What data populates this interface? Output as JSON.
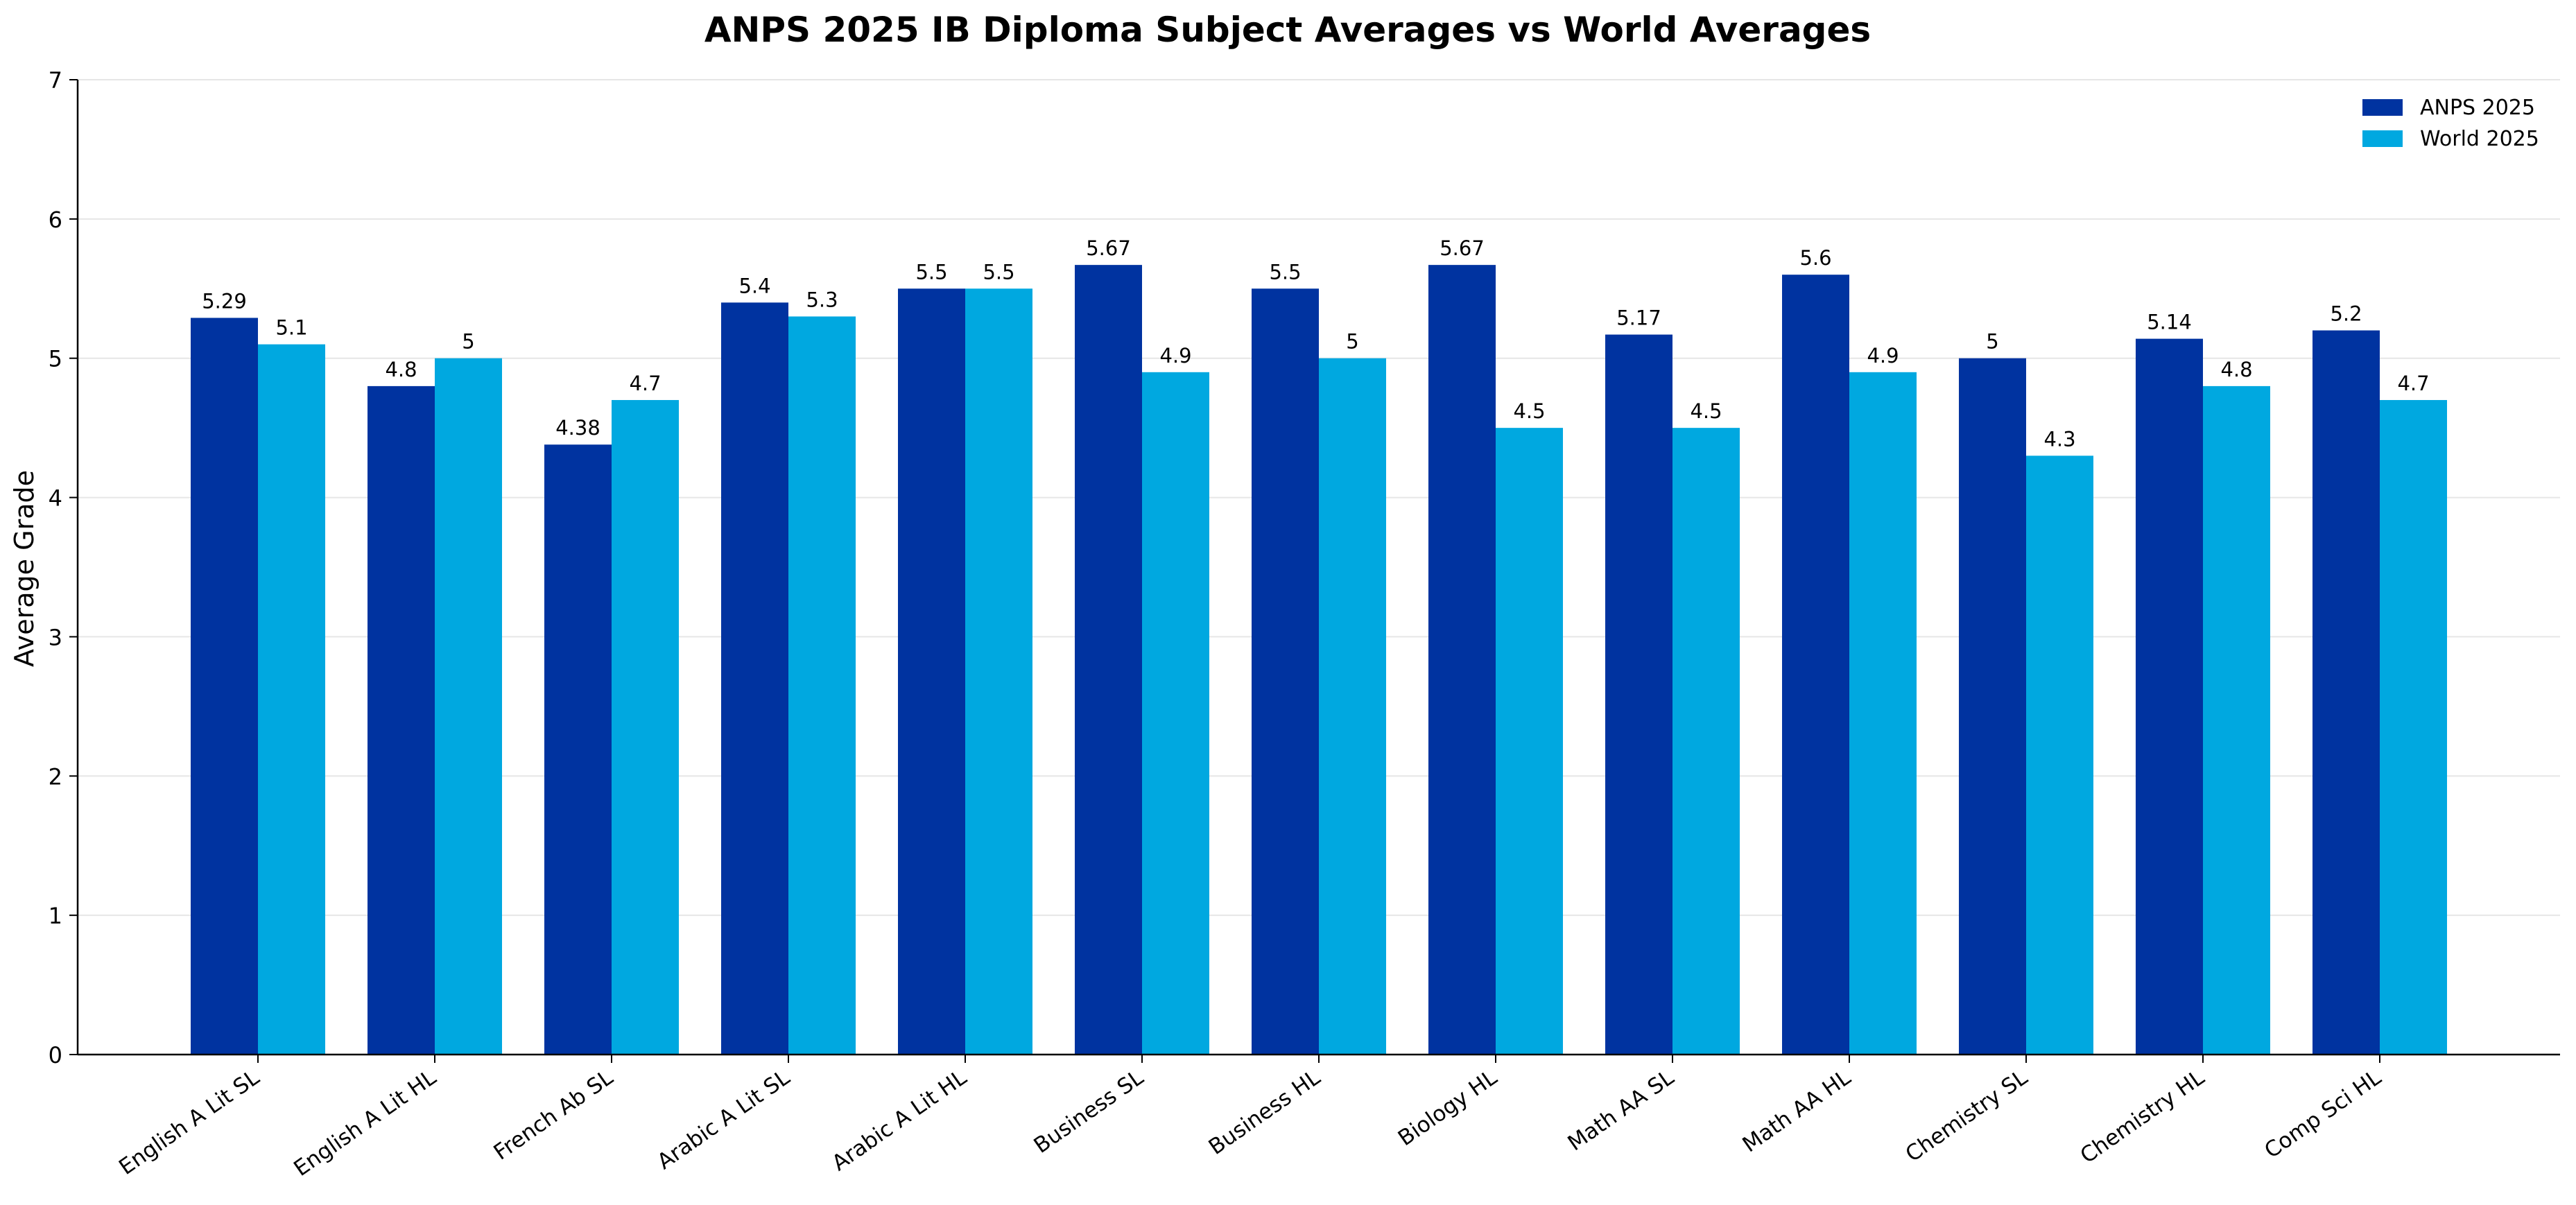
{
  "chart_data": {
    "type": "bar",
    "title": "ANPS 2025 IB Diploma Subject Averages vs World Averages",
    "xlabel": "",
    "ylabel": "Average Grade",
    "ylim": [
      0,
      7
    ],
    "yticks": [
      0,
      1,
      2,
      3,
      4,
      5,
      6,
      7
    ],
    "grid": "horizontal",
    "legend_position": "top-right",
    "categories": [
      "English A Lit SL",
      "English A Lit HL",
      "French Ab SL",
      "Arabic A Lit SL",
      "Arabic A Lit HL",
      "Business SL",
      "Business HL",
      "Biology HL",
      "Math AA SL",
      "Math AA HL",
      "Chemistry SL",
      "Chemistry HL",
      "Comp Sci HL"
    ],
    "series": [
      {
        "name": "ANPS 2025",
        "color": "#0033a0",
        "values": [
          5.29,
          4.8,
          4.38,
          5.4,
          5.5,
          5.67,
          5.5,
          5.67,
          5.17,
          5.6,
          5,
          5.14,
          5.2
        ],
        "labels": [
          "5.29",
          "4.8",
          "4.38",
          "5.4",
          "5.5",
          "5.67",
          "5.5",
          "5.67",
          "5.17",
          "5.6",
          "5",
          "5.14",
          "5.2"
        ]
      },
      {
        "name": "World 2025",
        "color": "#00a8e0",
        "values": [
          5.1,
          5,
          4.7,
          5.3,
          5.5,
          4.9,
          5,
          4.5,
          4.5,
          4.9,
          4.3,
          4.8,
          4.7
        ],
        "labels": [
          "5.1",
          "5",
          "4.7",
          "5.3",
          "5.5",
          "4.9",
          "5",
          "4.5",
          "4.5",
          "4.9",
          "4.3",
          "4.8",
          "4.7"
        ]
      }
    ]
  }
}
